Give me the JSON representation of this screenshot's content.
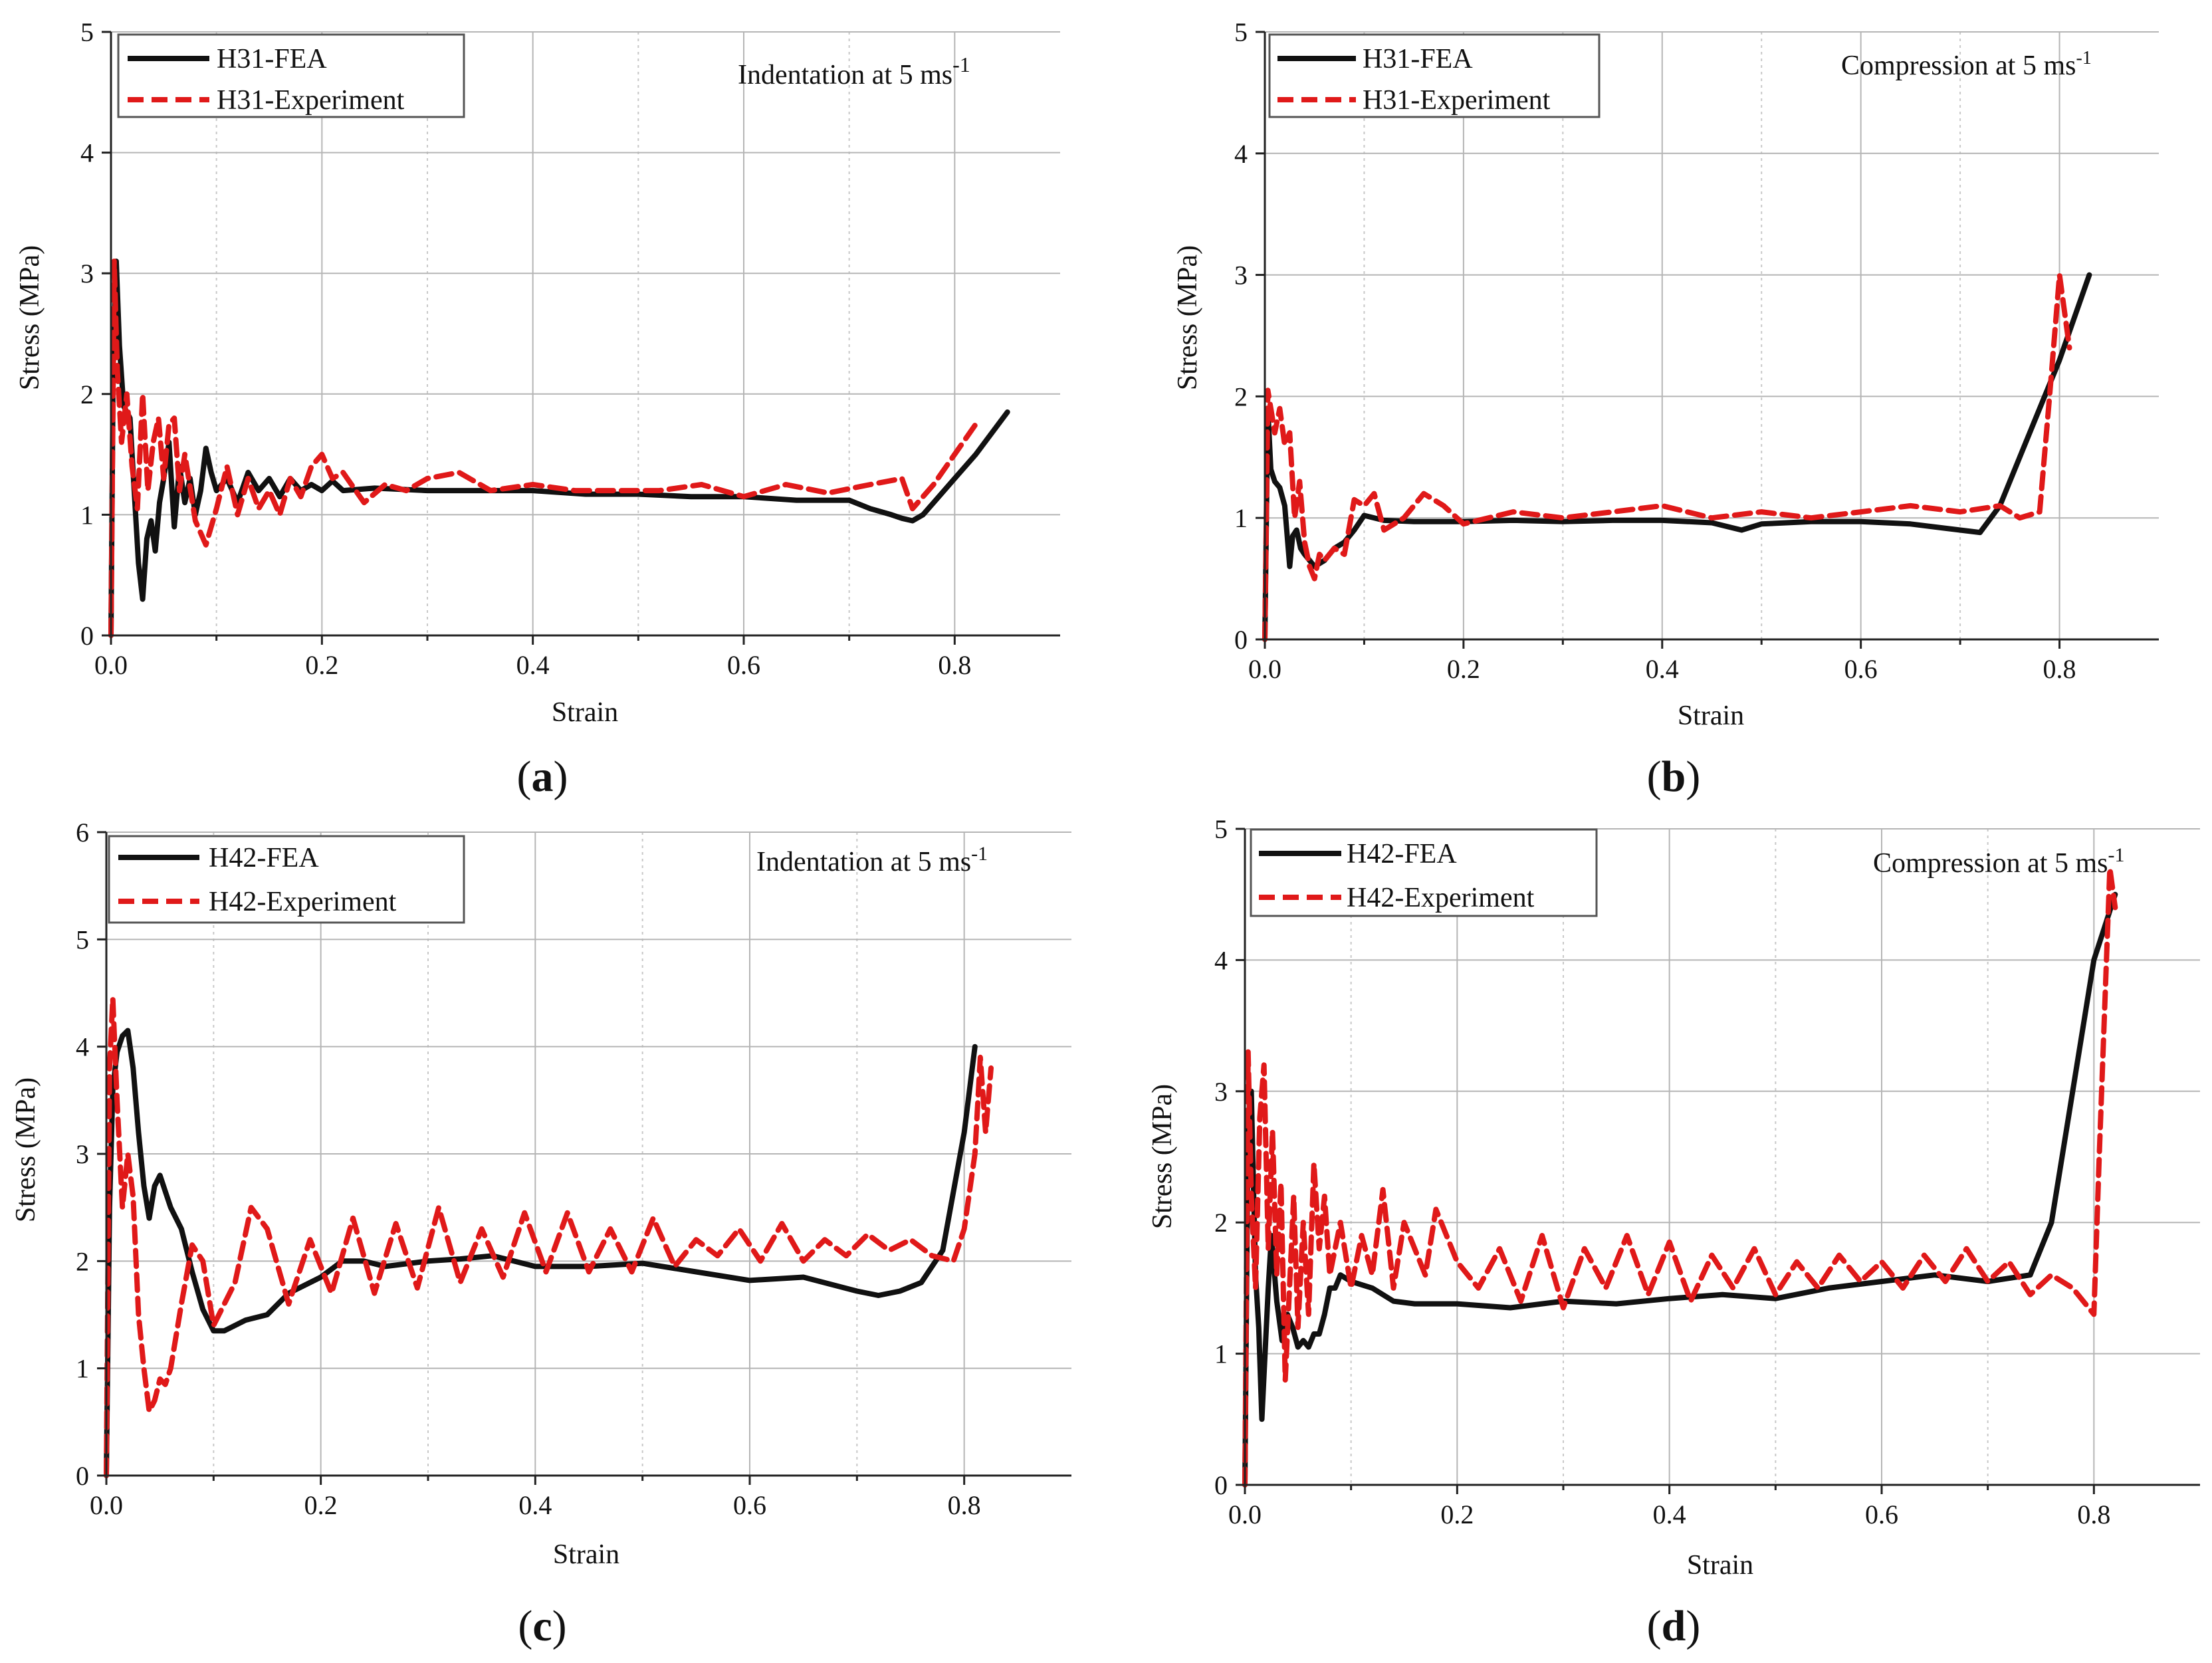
{
  "figure": {
    "panels": [
      {
        "id": "a",
        "caption_open": "(",
        "caption_letter": "a",
        "caption_close": ")",
        "annotation_text": "Indentation at 5 ms",
        "annotation_superscript": "-1",
        "legend": [
          "H31-FEA",
          "H31-Experiment"
        ]
      },
      {
        "id": "b",
        "caption_open": "(",
        "caption_letter": "b",
        "caption_close": ")",
        "annotation_text": "Compression at 5 ms",
        "annotation_superscript": "-1",
        "legend": [
          "H31-FEA",
          "H31-Experiment"
        ]
      },
      {
        "id": "c",
        "caption_open": "(",
        "caption_letter": "c",
        "caption_close": ")",
        "annotation_text": "Indentation at 5 ms",
        "annotation_superscript": "-1",
        "legend": [
          "H42-FEA",
          "H42-Experiment"
        ]
      },
      {
        "id": "d",
        "caption_open": "(",
        "caption_letter": "d",
        "caption_close": ")",
        "annotation_text": "Compression at 5 ms",
        "annotation_superscript": "-1",
        "legend": [
          "H42-FEA",
          "H42-Experiment"
        ]
      }
    ]
  },
  "chart_data": [
    {
      "type": "line",
      "title": "Indentation at 5 ms-1",
      "xlabel": "Strain",
      "ylabel": "Stress (MPa)",
      "xlim": [
        0,
        0.9
      ],
      "ylim": [
        0,
        5
      ],
      "xticks": [
        0.0,
        0.2,
        0.4,
        0.6,
        0.8
      ],
      "xtick_labels": [
        "0.0",
        "0.2",
        "0.4",
        "0.6",
        "0.8"
      ],
      "yticks": [
        0,
        1,
        2,
        3,
        4,
        5
      ],
      "ytick_labels": [
        "0",
        "1",
        "2",
        "3",
        "4",
        "5"
      ],
      "grid": true,
      "legend_position": "top-left",
      "series": [
        {
          "name": "H31-FEA",
          "color": "#111111",
          "style": "solid",
          "x": [
            0,
            0.002,
            0.005,
            0.008,
            0.012,
            0.018,
            0.022,
            0.026,
            0.03,
            0.034,
            0.038,
            0.042,
            0.046,
            0.05,
            0.055,
            0.06,
            0.065,
            0.07,
            0.075,
            0.08,
            0.085,
            0.09,
            0.095,
            0.1,
            0.11,
            0.12,
            0.13,
            0.14,
            0.15,
            0.16,
            0.17,
            0.18,
            0.19,
            0.2,
            0.21,
            0.22,
            0.25,
            0.3,
            0.35,
            0.4,
            0.45,
            0.5,
            0.55,
            0.6,
            0.65,
            0.7,
            0.72,
            0.74,
            0.75,
            0.76,
            0.77,
            0.78,
            0.8,
            0.82,
            0.85
          ],
          "y": [
            0,
            2.2,
            3.1,
            2.4,
            1.9,
            1.8,
            1.2,
            0.6,
            0.3,
            0.8,
            0.95,
            0.7,
            1.1,
            1.3,
            1.6,
            0.9,
            1.4,
            1.1,
            1.3,
            1.0,
            1.2,
            1.55,
            1.35,
            1.2,
            1.3,
            1.1,
            1.35,
            1.2,
            1.3,
            1.15,
            1.3,
            1.2,
            1.25,
            1.2,
            1.28,
            1.2,
            1.22,
            1.2,
            1.2,
            1.2,
            1.17,
            1.17,
            1.15,
            1.15,
            1.12,
            1.12,
            1.05,
            1.0,
            0.97,
            0.95,
            1.0,
            1.1,
            1.3,
            1.5,
            1.85
          ]
        },
        {
          "name": "H31-Experiment",
          "color": "#e01919",
          "style": "dashed",
          "x": [
            0,
            0.003,
            0.006,
            0.01,
            0.015,
            0.02,
            0.025,
            0.03,
            0.035,
            0.04,
            0.045,
            0.05,
            0.055,
            0.06,
            0.065,
            0.07,
            0.08,
            0.09,
            0.1,
            0.11,
            0.12,
            0.13,
            0.14,
            0.15,
            0.16,
            0.17,
            0.18,
            0.19,
            0.2,
            0.21,
            0.22,
            0.24,
            0.26,
            0.28,
            0.3,
            0.33,
            0.36,
            0.4,
            0.44,
            0.48,
            0.52,
            0.56,
            0.6,
            0.64,
            0.68,
            0.72,
            0.75,
            0.76,
            0.78,
            0.8,
            0.82
          ],
          "y": [
            0,
            3.1,
            2.2,
            1.6,
            2.0,
            1.4,
            1.05,
            2.0,
            1.2,
            1.6,
            1.8,
            1.3,
            1.75,
            1.8,
            1.2,
            1.5,
            0.95,
            0.75,
            1.05,
            1.4,
            1.0,
            1.3,
            1.05,
            1.2,
            1.0,
            1.3,
            1.15,
            1.4,
            1.5,
            1.3,
            1.35,
            1.1,
            1.25,
            1.2,
            1.3,
            1.35,
            1.2,
            1.25,
            1.2,
            1.2,
            1.2,
            1.25,
            1.15,
            1.25,
            1.18,
            1.25,
            1.3,
            1.05,
            1.25,
            1.5,
            1.75
          ]
        }
      ]
    },
    {
      "type": "line",
      "title": "Compression at 5 ms-1",
      "xlabel": "Strain",
      "ylabel": "Stress (MPa)",
      "xlim": [
        0,
        0.9
      ],
      "ylim": [
        0,
        5
      ],
      "xticks": [
        0.0,
        0.2,
        0.4,
        0.6,
        0.8
      ],
      "xtick_labels": [
        "0.0",
        "0.2",
        "0.4",
        "0.6",
        "0.8"
      ],
      "yticks": [
        0,
        1,
        2,
        3,
        4,
        5
      ],
      "ytick_labels": [
        "0",
        "1",
        "2",
        "3",
        "4",
        "5"
      ],
      "grid": true,
      "legend_position": "top-left",
      "series": [
        {
          "name": "H31-FEA",
          "color": "#111111",
          "style": "solid",
          "x": [
            0,
            0.003,
            0.006,
            0.01,
            0.015,
            0.02,
            0.025,
            0.028,
            0.032,
            0.036,
            0.04,
            0.045,
            0.05,
            0.06,
            0.07,
            0.08,
            0.09,
            0.1,
            0.12,
            0.15,
            0.2,
            0.25,
            0.3,
            0.35,
            0.4,
            0.45,
            0.48,
            0.5,
            0.55,
            0.6,
            0.65,
            0.7,
            0.72,
            0.74,
            0.77,
            0.8,
            0.83
          ],
          "y": [
            0,
            1.9,
            1.4,
            1.3,
            1.25,
            1.1,
            0.6,
            0.85,
            0.9,
            0.75,
            0.7,
            0.65,
            0.6,
            0.65,
            0.75,
            0.8,
            0.9,
            1.02,
            0.98,
            0.97,
            0.97,
            0.98,
            0.97,
            0.98,
            0.98,
            0.96,
            0.9,
            0.95,
            0.97,
            0.97,
            0.95,
            0.9,
            0.88,
            1.1,
            1.7,
            2.3,
            3.0
          ]
        },
        {
          "name": "H31-Experiment",
          "color": "#e01919",
          "style": "dashed",
          "x": [
            0,
            0.003,
            0.006,
            0.01,
            0.015,
            0.02,
            0.025,
            0.03,
            0.035,
            0.04,
            0.045,
            0.05,
            0.055,
            0.06,
            0.07,
            0.08,
            0.09,
            0.1,
            0.11,
            0.12,
            0.14,
            0.16,
            0.18,
            0.2,
            0.25,
            0.3,
            0.35,
            0.4,
            0.45,
            0.5,
            0.55,
            0.6,
            0.65,
            0.7,
            0.74,
            0.76,
            0.78,
            0.79,
            0.8,
            0.81
          ],
          "y": [
            0,
            2.05,
            1.9,
            1.7,
            1.9,
            1.6,
            1.7,
            1.0,
            1.3,
            0.8,
            0.6,
            0.5,
            0.7,
            0.65,
            0.75,
            0.7,
            1.15,
            1.1,
            1.2,
            0.9,
            1.0,
            1.2,
            1.1,
            0.95,
            1.05,
            1.0,
            1.05,
            1.1,
            1.0,
            1.05,
            1.0,
            1.05,
            1.1,
            1.05,
            1.1,
            1.0,
            1.05,
            2.0,
            3.0,
            2.4
          ]
        }
      ]
    },
    {
      "type": "line",
      "title": "Indentation at 5 ms-1",
      "xlabel": "Strain",
      "ylabel": "Stress (MPa)",
      "xlim": [
        0,
        0.9
      ],
      "ylim": [
        0,
        6
      ],
      "xticks": [
        0.0,
        0.2,
        0.4,
        0.6,
        0.8
      ],
      "xtick_labels": [
        "0.0",
        "0.2",
        "0.4",
        "0.6",
        "0.8"
      ],
      "yticks": [
        0,
        1,
        2,
        3,
        4,
        5,
        6
      ],
      "ytick_labels": [
        "0",
        "1",
        "2",
        "3",
        "4",
        "5",
        "6"
      ],
      "grid": true,
      "legend_position": "top-left",
      "series": [
        {
          "name": "H42-FEA",
          "color": "#111111",
          "style": "solid",
          "x": [
            0,
            0.003,
            0.006,
            0.01,
            0.015,
            0.02,
            0.025,
            0.03,
            0.035,
            0.04,
            0.045,
            0.05,
            0.055,
            0.06,
            0.07,
            0.08,
            0.09,
            0.1,
            0.11,
            0.13,
            0.15,
            0.17,
            0.2,
            0.22,
            0.24,
            0.26,
            0.3,
            0.33,
            0.36,
            0.38,
            0.4,
            0.45,
            0.5,
            0.55,
            0.6,
            0.65,
            0.7,
            0.72,
            0.74,
            0.76,
            0.78,
            0.8,
            0.81
          ],
          "y": [
            0,
            2.5,
            3.6,
            3.95,
            4.1,
            4.15,
            3.8,
            3.2,
            2.7,
            2.4,
            2.7,
            2.8,
            2.65,
            2.5,
            2.3,
            1.9,
            1.55,
            1.35,
            1.35,
            1.45,
            1.5,
            1.7,
            1.85,
            2.0,
            2.0,
            1.95,
            2.0,
            2.02,
            2.05,
            2.0,
            1.95,
            1.95,
            1.98,
            1.9,
            1.82,
            1.85,
            1.72,
            1.68,
            1.72,
            1.8,
            2.1,
            3.2,
            4.0
          ]
        },
        {
          "name": "H42-Experiment",
          "color": "#e01919",
          "style": "dashed",
          "x": [
            0,
            0.003,
            0.006,
            0.01,
            0.015,
            0.02,
            0.025,
            0.03,
            0.035,
            0.04,
            0.045,
            0.05,
            0.055,
            0.06,
            0.07,
            0.08,
            0.09,
            0.1,
            0.12,
            0.135,
            0.15,
            0.17,
            0.19,
            0.21,
            0.23,
            0.25,
            0.27,
            0.29,
            0.31,
            0.33,
            0.35,
            0.37,
            0.39,
            0.41,
            0.43,
            0.45,
            0.47,
            0.49,
            0.51,
            0.53,
            0.55,
            0.57,
            0.59,
            0.61,
            0.63,
            0.65,
            0.67,
            0.69,
            0.71,
            0.73,
            0.75,
            0.77,
            0.79,
            0.8,
            0.81,
            0.815,
            0.82,
            0.825
          ],
          "y": [
            0,
            3.8,
            4.45,
            3.5,
            2.5,
            3.0,
            2.6,
            1.5,
            1.0,
            0.6,
            0.7,
            0.9,
            0.85,
            1.0,
            1.6,
            2.15,
            2.0,
            1.4,
            1.8,
            2.5,
            2.3,
            1.6,
            2.2,
            1.7,
            2.4,
            1.7,
            2.35,
            1.75,
            2.5,
            1.8,
            2.3,
            1.85,
            2.45,
            1.9,
            2.45,
            1.9,
            2.3,
            1.9,
            2.4,
            1.95,
            2.2,
            2.05,
            2.3,
            2.0,
            2.35,
            2.0,
            2.2,
            2.05,
            2.25,
            2.1,
            2.2,
            2.05,
            2.0,
            2.3,
            3.0,
            3.9,
            3.2,
            3.8
          ]
        }
      ]
    },
    {
      "type": "line",
      "title": "Compression at 5 ms-1",
      "xlabel": "Strain",
      "ylabel": "Stress (MPa)",
      "xlim": [
        0,
        0.9
      ],
      "ylim": [
        0,
        5
      ],
      "xticks": [
        0.0,
        0.2,
        0.4,
        0.6,
        0.8
      ],
      "xtick_labels": [
        "0.0",
        "0.2",
        "0.4",
        "0.6",
        "0.8"
      ],
      "yticks": [
        0,
        1,
        2,
        3,
        4,
        5
      ],
      "ytick_labels": [
        "0",
        "1",
        "2",
        "3",
        "4",
        "5"
      ],
      "grid": true,
      "legend_position": "top-left",
      "series": [
        {
          "name": "H42-FEA",
          "color": "#111111",
          "style": "solid",
          "x": [
            0,
            0.003,
            0.006,
            0.01,
            0.013,
            0.016,
            0.019,
            0.022,
            0.025,
            0.03,
            0.035,
            0.04,
            0.045,
            0.05,
            0.055,
            0.06,
            0.065,
            0.07,
            0.075,
            0.08,
            0.085,
            0.09,
            0.1,
            0.12,
            0.14,
            0.16,
            0.2,
            0.25,
            0.3,
            0.35,
            0.4,
            0.45,
            0.5,
            0.55,
            0.6,
            0.65,
            0.7,
            0.74,
            0.76,
            0.78,
            0.8,
            0.82
          ],
          "y": [
            0,
            2.8,
            3.0,
            1.6,
            1.2,
            0.5,
            1.0,
            1.5,
            1.9,
            1.4,
            1.1,
            1.3,
            1.2,
            1.05,
            1.1,
            1.05,
            1.15,
            1.15,
            1.3,
            1.5,
            1.5,
            1.6,
            1.55,
            1.5,
            1.4,
            1.38,
            1.38,
            1.35,
            1.4,
            1.38,
            1.42,
            1.45,
            1.42,
            1.5,
            1.55,
            1.6,
            1.55,
            1.6,
            2.0,
            3.0,
            4.0,
            4.5
          ]
        },
        {
          "name": "H42-Experiment",
          "color": "#e01919",
          "style": "dashed",
          "x": [
            0,
            0.003,
            0.006,
            0.01,
            0.014,
            0.018,
            0.022,
            0.026,
            0.03,
            0.034,
            0.038,
            0.042,
            0.046,
            0.05,
            0.055,
            0.06,
            0.065,
            0.07,
            0.075,
            0.08,
            0.09,
            0.1,
            0.11,
            0.12,
            0.13,
            0.14,
            0.15,
            0.17,
            0.18,
            0.2,
            0.22,
            0.24,
            0.26,
            0.28,
            0.3,
            0.32,
            0.34,
            0.36,
            0.38,
            0.4,
            0.42,
            0.44,
            0.46,
            0.48,
            0.5,
            0.52,
            0.54,
            0.56,
            0.58,
            0.6,
            0.62,
            0.64,
            0.66,
            0.68,
            0.7,
            0.72,
            0.74,
            0.76,
            0.78,
            0.8,
            0.805,
            0.81,
            0.815,
            0.82
          ],
          "y": [
            0,
            3.3,
            2.2,
            1.5,
            2.8,
            3.2,
            1.8,
            2.7,
            1.6,
            2.3,
            0.8,
            1.5,
            2.2,
            1.2,
            2.0,
            1.3,
            2.45,
            1.8,
            2.2,
            1.6,
            2.0,
            1.5,
            1.9,
            1.6,
            2.25,
            1.5,
            2.0,
            1.6,
            2.1,
            1.7,
            1.5,
            1.8,
            1.4,
            1.9,
            1.35,
            1.8,
            1.5,
            1.9,
            1.45,
            1.85,
            1.4,
            1.75,
            1.5,
            1.8,
            1.45,
            1.7,
            1.5,
            1.75,
            1.55,
            1.7,
            1.5,
            1.75,
            1.55,
            1.8,
            1.55,
            1.7,
            1.45,
            1.6,
            1.5,
            1.3,
            2.5,
            3.6,
            4.7,
            4.4
          ]
        }
      ]
    }
  ]
}
